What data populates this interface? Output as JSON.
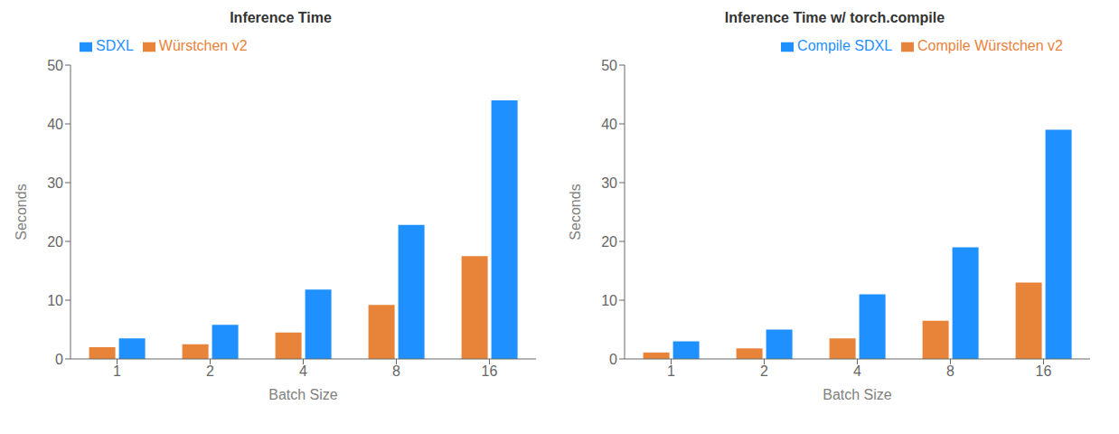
{
  "chart_data": [
    {
      "type": "bar",
      "title": "Inference Time",
      "xlabel": "Batch Size",
      "ylabel": "Seconds",
      "categories": [
        "1",
        "2",
        "4",
        "8",
        "16"
      ],
      "series": [
        {
          "name": "Würstchen v2",
          "color": "#E8833A",
          "values": [
            2.0,
            2.5,
            4.5,
            9.2,
            17.5
          ]
        },
        {
          "name": "SDXL",
          "color": "#1E90FF",
          "values": [
            3.5,
            5.8,
            11.8,
            22.8,
            44.0
          ]
        }
      ],
      "ylim": [
        0,
        50
      ],
      "yticks": [
        0,
        10,
        20,
        30,
        40,
        50
      ],
      "legend": "upper left",
      "grid": false
    },
    {
      "type": "bar",
      "title": "Inference Time w/ torch.compile",
      "xlabel": "Batch Size",
      "ylabel": "Seconds",
      "categories": [
        "1",
        "2",
        "4",
        "8",
        "16"
      ],
      "series": [
        {
          "name": "Compile Würstchen v2",
          "color": "#E8833A",
          "values": [
            1.1,
            1.8,
            3.5,
            6.5,
            13.0
          ]
        },
        {
          "name": "Compile SDXL",
          "color": "#1E90FF",
          "values": [
            3.0,
            5.0,
            11.0,
            19.0,
            39.0
          ]
        }
      ],
      "ylim": [
        0,
        50
      ],
      "yticks": [
        0,
        10,
        20,
        30,
        40,
        50
      ],
      "legend": "upper right",
      "grid": false
    }
  ]
}
